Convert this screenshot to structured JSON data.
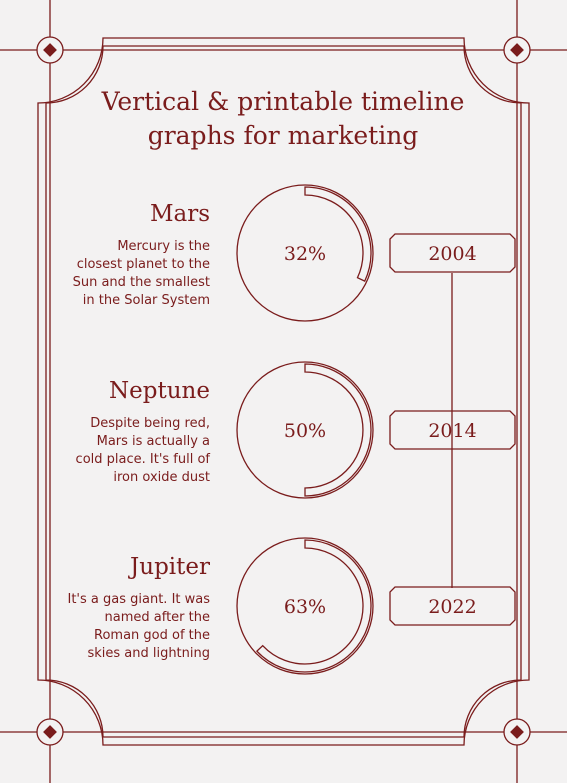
{
  "title": [
    "Vertical & printable timeline",
    "graphs for marketing"
  ],
  "items": [
    {
      "name": "Mars",
      "description": [
        "Mercury is the",
        "closest planet to the",
        "Sun and the smallest",
        "in the Solar System"
      ],
      "year": "2004"
    },
    {
      "name": "Neptune",
      "description": [
        "Despite being red,",
        "Mars is actually a",
        "cold place. It's full of",
        "iron oxide dust"
      ],
      "year": "2014"
    },
    {
      "name": "Jupiter",
      "description": [
        "It's a gas giant. It was",
        "named after the",
        "Roman god of the",
        "skies and lightning"
      ],
      "year": "2022"
    }
  ],
  "values": [
    32,
    50,
    63
  ],
  "value_labels": [
    "32%",
    "50%",
    "63%"
  ]
}
